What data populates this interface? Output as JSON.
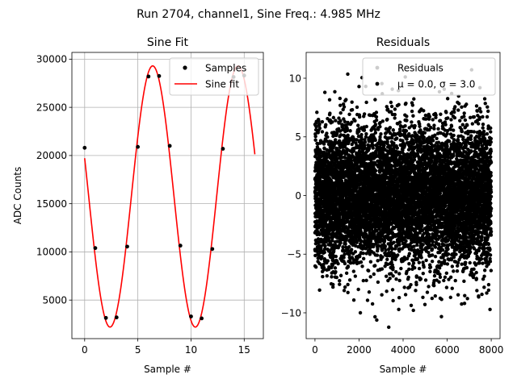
{
  "figure": {
    "suptitle": "Run 2704, channel1, Sine Freq.: 4.985 MHz"
  },
  "chart_data": [
    {
      "type": "line",
      "title": "Sine Fit",
      "xlabel": "Sample #",
      "ylabel": "ADC Counts",
      "xlim": [
        -1.2,
        16.8
      ],
      "ylim": [
        1000,
        30700
      ],
      "xticks": [
        0,
        5,
        10,
        15
      ],
      "yticks": [
        5000,
        10000,
        15000,
        20000,
        25000,
        30000
      ],
      "grid": true,
      "legend_position": "top-right",
      "series": [
        {
          "name": "Samples",
          "style": "markers",
          "color": "#000000",
          "x": [
            0,
            1,
            2,
            3,
            4,
            5,
            6,
            7,
            8,
            9,
            10,
            11,
            12,
            13,
            14,
            15
          ],
          "y": [
            20800,
            10400,
            3150,
            3200,
            10550,
            20900,
            28200,
            28250,
            21000,
            10650,
            3300,
            3100,
            10300,
            20700,
            28150,
            28300
          ]
        },
        {
          "name": "Sine fit",
          "style": "line",
          "color": "#ff0000",
          "model": {
            "offset": 15750,
            "amplitude": 13550,
            "period_samples": 8.02,
            "phase_zero_at": 0.38,
            "x_range": [
              0,
              16
            ]
          }
        }
      ]
    },
    {
      "type": "scatter",
      "title": "Residuals",
      "xlabel": "Sample #",
      "ylabel": "",
      "xlim": [
        -400,
        8400
      ],
      "ylim": [
        -12.2,
        12.2
      ],
      "xticks": [
        0,
        2000,
        4000,
        6000,
        8000
      ],
      "yticks": [
        -10,
        -5,
        0,
        5,
        10
      ],
      "grid": false,
      "legend_position": "top-right",
      "series": [
        {
          "name": "Residuals",
          "style": "markers",
          "color": "#cccccc",
          "legend_only": true
        },
        {
          "name": "μ = 0.0, σ = 3.0",
          "style": "markers",
          "color": "#000000",
          "distribution": {
            "mean": 0.0,
            "std": 3.0,
            "count": 8000,
            "x_range": [
              0,
              8000
            ]
          }
        }
      ]
    }
  ]
}
